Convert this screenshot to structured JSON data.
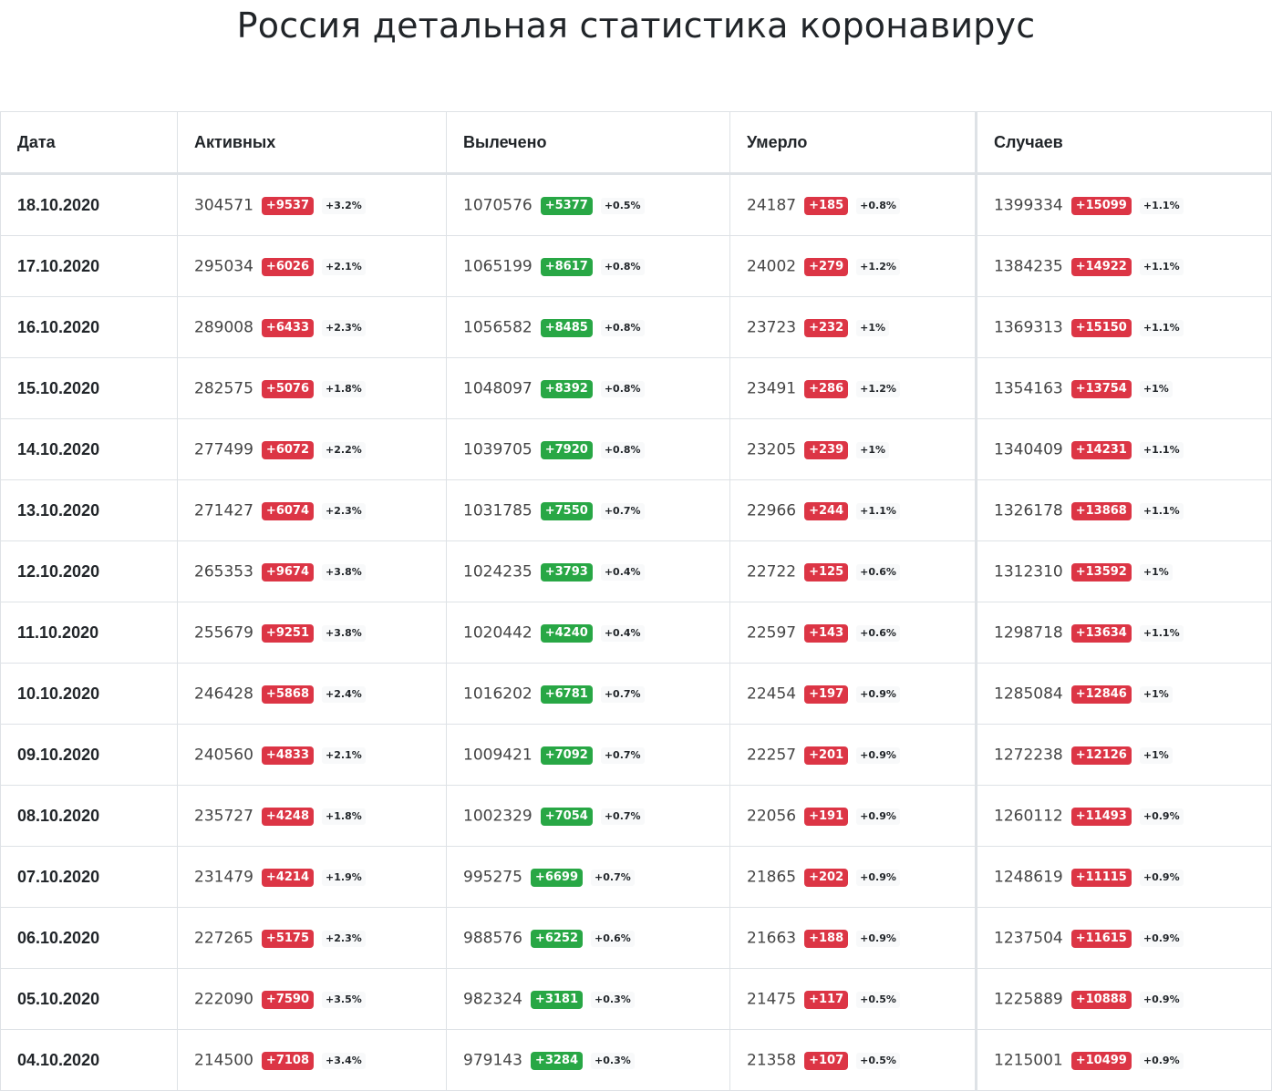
{
  "title": "Россия детальная статистика коронавирус",
  "colors": {
    "increase_bad": "#dc3545",
    "increase_good": "#28a745",
    "border": "#dee2e6"
  },
  "table": {
    "headers": [
      "Дата",
      "Активных",
      "Вылечено",
      "Умерло",
      "Случаев"
    ],
    "rows": [
      {
        "date": "18.10.2020",
        "active": {
          "value": "304571",
          "delta": "+9537",
          "pct": "+3.2%"
        },
        "recovered": {
          "value": "1070576",
          "delta": "+5377",
          "pct": "+0.5%"
        },
        "deaths": {
          "value": "24187",
          "delta": "+185",
          "pct": "+0.8%"
        },
        "cases": {
          "value": "1399334",
          "delta": "+15099",
          "pct": "+1.1%"
        }
      },
      {
        "date": "17.10.2020",
        "active": {
          "value": "295034",
          "delta": "+6026",
          "pct": "+2.1%"
        },
        "recovered": {
          "value": "1065199",
          "delta": "+8617",
          "pct": "+0.8%"
        },
        "deaths": {
          "value": "24002",
          "delta": "+279",
          "pct": "+1.2%"
        },
        "cases": {
          "value": "1384235",
          "delta": "+14922",
          "pct": "+1.1%"
        }
      },
      {
        "date": "16.10.2020",
        "active": {
          "value": "289008",
          "delta": "+6433",
          "pct": "+2.3%"
        },
        "recovered": {
          "value": "1056582",
          "delta": "+8485",
          "pct": "+0.8%"
        },
        "deaths": {
          "value": "23723",
          "delta": "+232",
          "pct": "+1%"
        },
        "cases": {
          "value": "1369313",
          "delta": "+15150",
          "pct": "+1.1%"
        }
      },
      {
        "date": "15.10.2020",
        "active": {
          "value": "282575",
          "delta": "+5076",
          "pct": "+1.8%"
        },
        "recovered": {
          "value": "1048097",
          "delta": "+8392",
          "pct": "+0.8%"
        },
        "deaths": {
          "value": "23491",
          "delta": "+286",
          "pct": "+1.2%"
        },
        "cases": {
          "value": "1354163",
          "delta": "+13754",
          "pct": "+1%"
        }
      },
      {
        "date": "14.10.2020",
        "active": {
          "value": "277499",
          "delta": "+6072",
          "pct": "+2.2%"
        },
        "recovered": {
          "value": "1039705",
          "delta": "+7920",
          "pct": "+0.8%"
        },
        "deaths": {
          "value": "23205",
          "delta": "+239",
          "pct": "+1%"
        },
        "cases": {
          "value": "1340409",
          "delta": "+14231",
          "pct": "+1.1%"
        }
      },
      {
        "date": "13.10.2020",
        "active": {
          "value": "271427",
          "delta": "+6074",
          "pct": "+2.3%"
        },
        "recovered": {
          "value": "1031785",
          "delta": "+7550",
          "pct": "+0.7%"
        },
        "deaths": {
          "value": "22966",
          "delta": "+244",
          "pct": "+1.1%"
        },
        "cases": {
          "value": "1326178",
          "delta": "+13868",
          "pct": "+1.1%"
        }
      },
      {
        "date": "12.10.2020",
        "active": {
          "value": "265353",
          "delta": "+9674",
          "pct": "+3.8%"
        },
        "recovered": {
          "value": "1024235",
          "delta": "+3793",
          "pct": "+0.4%"
        },
        "deaths": {
          "value": "22722",
          "delta": "+125",
          "pct": "+0.6%"
        },
        "cases": {
          "value": "1312310",
          "delta": "+13592",
          "pct": "+1%"
        }
      },
      {
        "date": "11.10.2020",
        "active": {
          "value": "255679",
          "delta": "+9251",
          "pct": "+3.8%"
        },
        "recovered": {
          "value": "1020442",
          "delta": "+4240",
          "pct": "+0.4%"
        },
        "deaths": {
          "value": "22597",
          "delta": "+143",
          "pct": "+0.6%"
        },
        "cases": {
          "value": "1298718",
          "delta": "+13634",
          "pct": "+1.1%"
        }
      },
      {
        "date": "10.10.2020",
        "active": {
          "value": "246428",
          "delta": "+5868",
          "pct": "+2.4%"
        },
        "recovered": {
          "value": "1016202",
          "delta": "+6781",
          "pct": "+0.7%"
        },
        "deaths": {
          "value": "22454",
          "delta": "+197",
          "pct": "+0.9%"
        },
        "cases": {
          "value": "1285084",
          "delta": "+12846",
          "pct": "+1%"
        }
      },
      {
        "date": "09.10.2020",
        "active": {
          "value": "240560",
          "delta": "+4833",
          "pct": "+2.1%"
        },
        "recovered": {
          "value": "1009421",
          "delta": "+7092",
          "pct": "+0.7%"
        },
        "deaths": {
          "value": "22257",
          "delta": "+201",
          "pct": "+0.9%"
        },
        "cases": {
          "value": "1272238",
          "delta": "+12126",
          "pct": "+1%"
        }
      },
      {
        "date": "08.10.2020",
        "active": {
          "value": "235727",
          "delta": "+4248",
          "pct": "+1.8%"
        },
        "recovered": {
          "value": "1002329",
          "delta": "+7054",
          "pct": "+0.7%"
        },
        "deaths": {
          "value": "22056",
          "delta": "+191",
          "pct": "+0.9%"
        },
        "cases": {
          "value": "1260112",
          "delta": "+11493",
          "pct": "+0.9%"
        }
      },
      {
        "date": "07.10.2020",
        "active": {
          "value": "231479",
          "delta": "+4214",
          "pct": "+1.9%"
        },
        "recovered": {
          "value": "995275",
          "delta": "+6699",
          "pct": "+0.7%"
        },
        "deaths": {
          "value": "21865",
          "delta": "+202",
          "pct": "+0.9%"
        },
        "cases": {
          "value": "1248619",
          "delta": "+11115",
          "pct": "+0.9%"
        }
      },
      {
        "date": "06.10.2020",
        "active": {
          "value": "227265",
          "delta": "+5175",
          "pct": "+2.3%"
        },
        "recovered": {
          "value": "988576",
          "delta": "+6252",
          "pct": "+0.6%"
        },
        "deaths": {
          "value": "21663",
          "delta": "+188",
          "pct": "+0.9%"
        },
        "cases": {
          "value": "1237504",
          "delta": "+11615",
          "pct": "+0.9%"
        }
      },
      {
        "date": "05.10.2020",
        "active": {
          "value": "222090",
          "delta": "+7590",
          "pct": "+3.5%"
        },
        "recovered": {
          "value": "982324",
          "delta": "+3181",
          "pct": "+0.3%"
        },
        "deaths": {
          "value": "21475",
          "delta": "+117",
          "pct": "+0.5%"
        },
        "cases": {
          "value": "1225889",
          "delta": "+10888",
          "pct": "+0.9%"
        }
      },
      {
        "date": "04.10.2020",
        "active": {
          "value": "214500",
          "delta": "+7108",
          "pct": "+3.4%"
        },
        "recovered": {
          "value": "979143",
          "delta": "+3284",
          "pct": "+0.3%"
        },
        "deaths": {
          "value": "21358",
          "delta": "+107",
          "pct": "+0.5%"
        },
        "cases": {
          "value": "1215001",
          "delta": "+10499",
          "pct": "+0.9%"
        }
      }
    ]
  }
}
